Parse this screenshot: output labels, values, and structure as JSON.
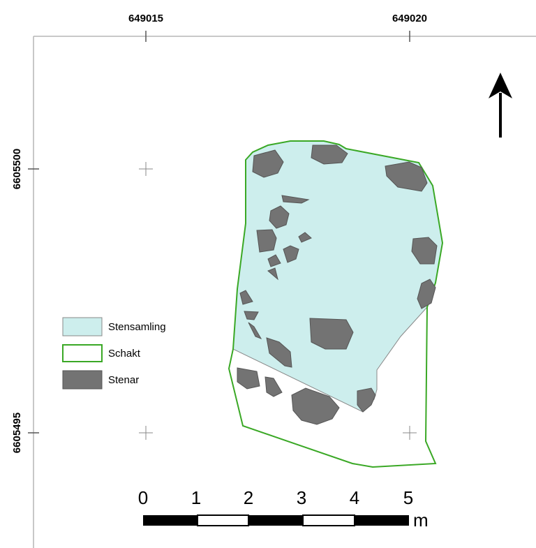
{
  "map": {
    "x_ticks": [
      "649015",
      "649020"
    ],
    "y_ticks": [
      "6605500",
      "6605495"
    ],
    "north_arrow": "arrow-up-icon"
  },
  "legend": {
    "items": [
      {
        "label": "Stensamling",
        "fill": "#cdeeed",
        "stroke": "#888888"
      },
      {
        "label": "Schakt",
        "fill": "#ffffff",
        "stroke": "#3aa825"
      },
      {
        "label": "Stenar",
        "fill": "#737373",
        "stroke": "#555555"
      }
    ]
  },
  "scalebar": {
    "labels": [
      "0",
      "1",
      "2",
      "3",
      "4",
      "5"
    ],
    "unit": "m"
  },
  "colors": {
    "stensamling": "#cdeeed",
    "schakt": "#3aa825",
    "stenar": "#737373",
    "frame": "#b5b5b5"
  }
}
